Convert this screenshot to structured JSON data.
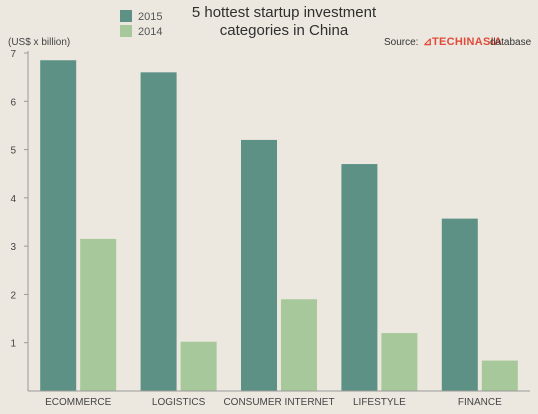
{
  "chart_data": {
    "type": "bar",
    "title_lines": [
      "5 hottest startup investment",
      "categories in China"
    ],
    "unit_label": "(US$ x billion)",
    "source": {
      "prefix": "Source:",
      "brand": "TECHINASIA",
      "suffix": "database"
    },
    "categories": [
      "ECOMMERCE",
      "LOGISTICS",
      "CONSUMER INTERNET",
      "LIFESTYLE",
      "FINANCE"
    ],
    "series": [
      {
        "name": "2015",
        "color": "#5e9186",
        "values": [
          6.85,
          6.6,
          5.2,
          4.7,
          3.57
        ]
      },
      {
        "name": "2014",
        "color": "#a7c89b",
        "values": [
          3.15,
          1.02,
          1.9,
          1.2,
          0.63
        ]
      }
    ],
    "ylim": [
      0,
      7
    ],
    "yticks": [
      1,
      2,
      3,
      4,
      5,
      6,
      7
    ],
    "grid": false,
    "legend_position": "top-left"
  }
}
